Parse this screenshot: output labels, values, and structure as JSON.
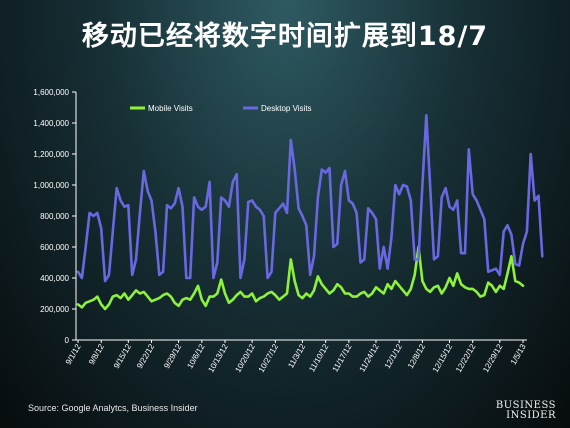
{
  "title": "移动已经将数字时间扩展到18/7",
  "source": "Source: Google Analytcs, Business Insider",
  "logo": {
    "line1": "BUSINESS",
    "line2": "INSIDER"
  },
  "colors": {
    "mobile": "#8ef23a",
    "desktop": "#6a68e0",
    "axis": "#ffffff"
  },
  "chart_data": {
    "type": "line",
    "title": "",
    "xlabel": "",
    "ylabel": "",
    "ylim": [
      0,
      1600000
    ],
    "yticks": [
      0,
      200000,
      400000,
      600000,
      800000,
      1000000,
      1200000,
      1400000,
      1600000
    ],
    "ytick_labels": [
      "0",
      "200,000",
      "400,000",
      "600,000",
      "800,000",
      "1,000,000",
      "1,200,000",
      "1,400,000",
      "1,600,000"
    ],
    "xtick_labels": [
      "9/1/12",
      "9/8/12",
      "9/15/12",
      "9/22/12",
      "9/29/12",
      "10/6/12",
      "10/13/12",
      "10/20/12",
      "10/27/12",
      "11/3/12",
      "11/10/12",
      "11/17/12",
      "11/24/12",
      "12/1/12",
      "12/8/12",
      "12/15/12",
      "12/22/12",
      "12/29/12",
      "1/5/13"
    ],
    "x_start": "9/1/12",
    "x_end": "1/5/13",
    "grid": false,
    "legend": "top",
    "series": [
      {
        "name": "Mobile Visits",
        "color": "#8ef23a",
        "values": [
          230000,
          210000,
          240000,
          250000,
          260000,
          280000,
          230000,
          200000,
          230000,
          280000,
          290000,
          270000,
          300000,
          260000,
          290000,
          320000,
          300000,
          310000,
          280000,
          250000,
          260000,
          270000,
          290000,
          300000,
          280000,
          240000,
          220000,
          260000,
          270000,
          260000,
          300000,
          350000,
          260000,
          220000,
          280000,
          280000,
          300000,
          390000,
          300000,
          240000,
          260000,
          290000,
          310000,
          280000,
          280000,
          300000,
          250000,
          270000,
          280000,
          300000,
          310000,
          290000,
          260000,
          280000,
          300000,
          520000,
          380000,
          290000,
          270000,
          300000,
          280000,
          320000,
          410000,
          360000,
          330000,
          300000,
          320000,
          360000,
          340000,
          300000,
          300000,
          280000,
          280000,
          300000,
          310000,
          280000,
          300000,
          340000,
          320000,
          300000,
          360000,
          330000,
          380000,
          350000,
          320000,
          290000,
          330000,
          420000,
          600000,
          380000,
          330000,
          310000,
          340000,
          350000,
          300000,
          340000,
          400000,
          350000,
          430000,
          360000,
          340000,
          330000,
          330000,
          310000,
          280000,
          290000,
          370000,
          350000,
          310000,
          350000,
          330000,
          430000,
          540000,
          380000,
          370000,
          350000
        ]
      },
      {
        "name": "Desktop Visits",
        "color": "#6a68e0",
        "values": [
          440000,
          400000,
          600000,
          820000,
          800000,
          820000,
          720000,
          380000,
          420000,
          700000,
          980000,
          900000,
          860000,
          870000,
          420000,
          520000,
          820000,
          1090000,
          960000,
          900000,
          700000,
          420000,
          440000,
          870000,
          850000,
          880000,
          980000,
          860000,
          400000,
          400000,
          920000,
          860000,
          840000,
          860000,
          1020000,
          400000,
          500000,
          920000,
          900000,
          860000,
          1020000,
          1070000,
          400000,
          520000,
          890000,
          900000,
          860000,
          840000,
          800000,
          400000,
          440000,
          820000,
          850000,
          880000,
          820000,
          1290000,
          1100000,
          850000,
          800000,
          740000,
          420000,
          540000,
          920000,
          1100000,
          1080000,
          1110000,
          600000,
          620000,
          1000000,
          1090000,
          900000,
          880000,
          820000,
          500000,
          520000,
          850000,
          820000,
          780000,
          460000,
          600000,
          460000,
          660000,
          1000000,
          940000,
          1000000,
          990000,
          900000,
          520000,
          520000,
          1000000,
          1450000,
          1000000,
          520000,
          540000,
          920000,
          980000,
          860000,
          840000,
          900000,
          560000,
          560000,
          1230000,
          940000,
          900000,
          840000,
          780000,
          440000,
          450000,
          460000,
          420000,
          700000,
          740000,
          680000,
          490000,
          480000,
          620000,
          700000,
          1200000,
          900000,
          930000,
          540000
        ]
      }
    ]
  }
}
